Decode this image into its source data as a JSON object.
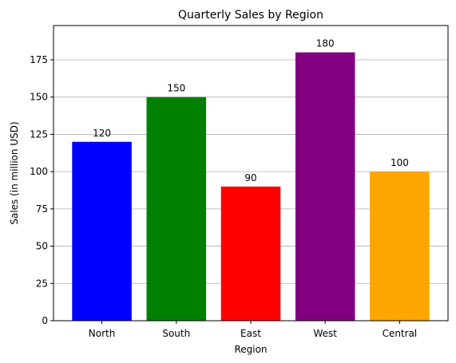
{
  "chart_data": {
    "type": "bar",
    "title": "Quarterly Sales by Region",
    "xlabel": "Region",
    "ylabel": "Sales (in million USD)",
    "categories": [
      "North",
      "South",
      "East",
      "West",
      "Central"
    ],
    "values": [
      120,
      150,
      90,
      180,
      100
    ],
    "value_labels": [
      "120",
      "150",
      "90",
      "180",
      "100"
    ],
    "colors": [
      "#0000ff",
      "#008000",
      "#ff0000",
      "#800080",
      "#ffa500"
    ],
    "ylim": [
      0,
      198
    ],
    "yticks": [
      0,
      25,
      50,
      75,
      100,
      125,
      150,
      175
    ],
    "ytick_labels": [
      "0",
      "25",
      "50",
      "75",
      "100",
      "125",
      "150",
      "175"
    ],
    "grid": "y-axis horizontal",
    "legend": "none"
  }
}
